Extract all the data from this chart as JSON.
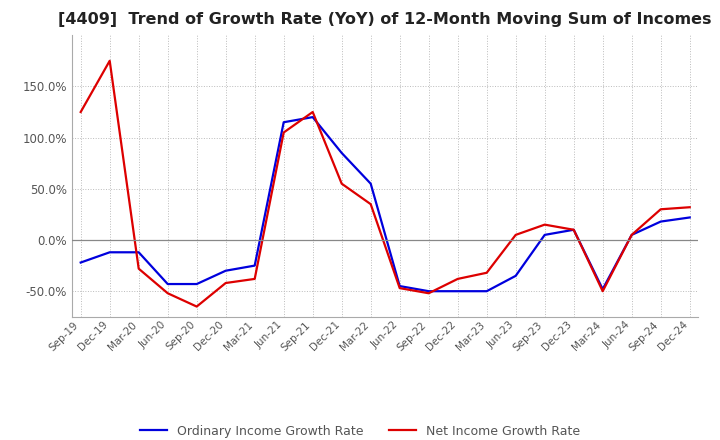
{
  "title": "[4409]  Trend of Growth Rate (YoY) of 12-Month Moving Sum of Incomes",
  "title_fontsize": 11.5,
  "legend_labels": [
    "Ordinary Income Growth Rate",
    "Net Income Growth Rate"
  ],
  "line_colors": [
    "#0000dd",
    "#dd0000"
  ],
  "ylim": [
    -75,
    200
  ],
  "yticks": [
    -50,
    0,
    50,
    100,
    150
  ],
  "x_labels": [
    "Sep-19",
    "Dec-19",
    "Mar-20",
    "Jun-20",
    "Sep-20",
    "Dec-20",
    "Mar-21",
    "Jun-21",
    "Sep-21",
    "Dec-21",
    "Mar-22",
    "Jun-22",
    "Sep-22",
    "Dec-22",
    "Mar-23",
    "Jun-23",
    "Sep-23",
    "Dec-23",
    "Mar-24",
    "Jun-24",
    "Sep-24",
    "Dec-24"
  ],
  "ordinary_income": [
    -22,
    -12,
    -12,
    -43,
    -43,
    -30,
    -25,
    115,
    120,
    85,
    55,
    -45,
    -50,
    -50,
    -50,
    -35,
    5,
    10,
    -48,
    5,
    18,
    22
  ],
  "net_income": [
    125,
    175,
    -28,
    -52,
    -65,
    -42,
    -38,
    105,
    125,
    55,
    35,
    -47,
    -52,
    -38,
    -32,
    5,
    15,
    10,
    -50,
    5,
    30,
    32
  ],
  "background_color": "#ffffff",
  "grid_color": "#bbbbbb",
  "tick_color": "#555555"
}
